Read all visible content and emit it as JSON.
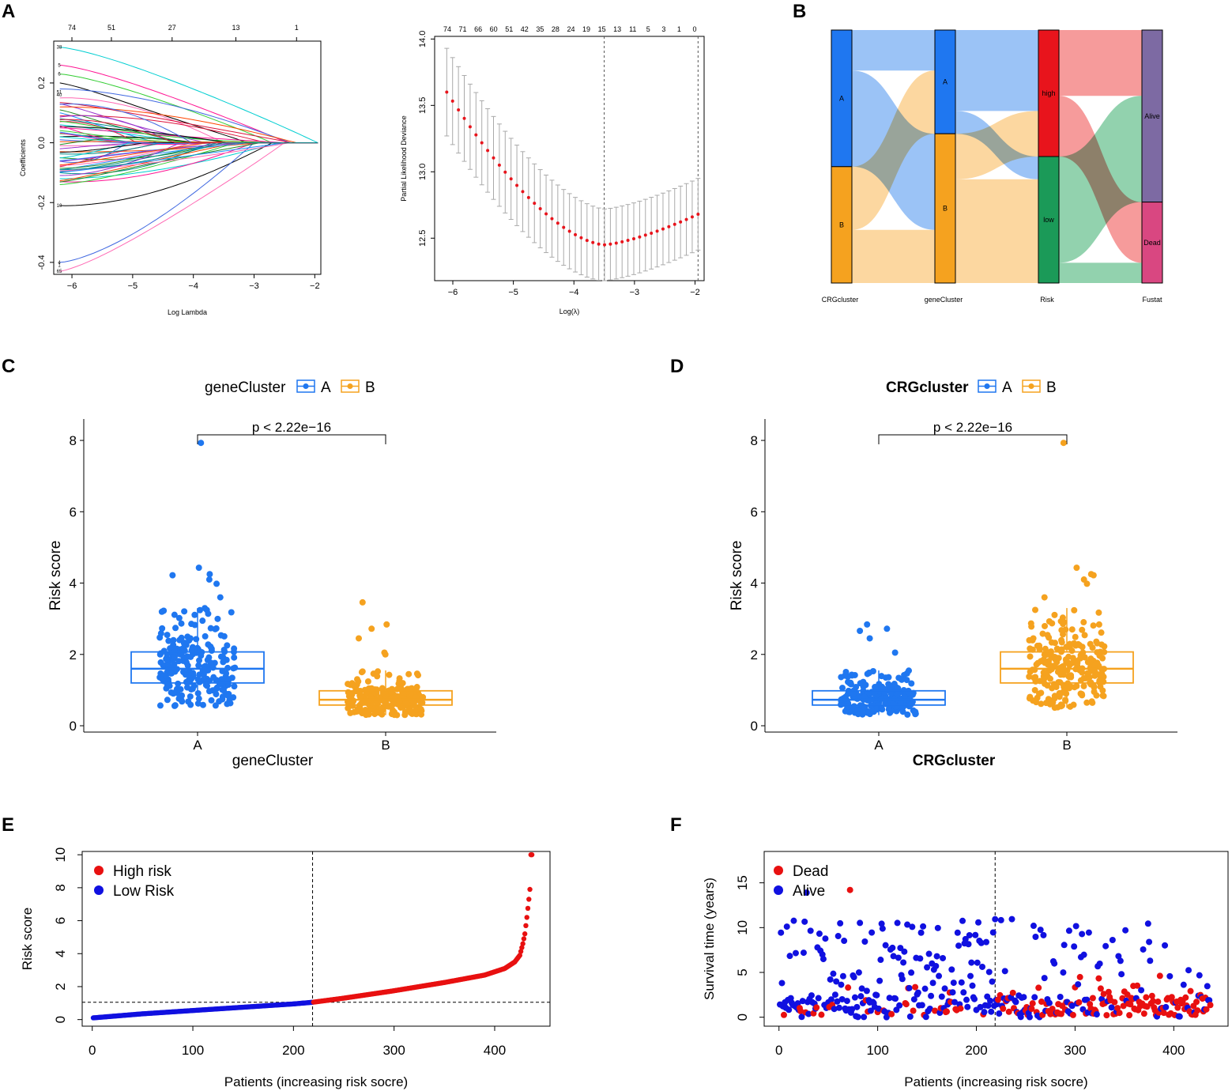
{
  "panels": {
    "A": "A",
    "B": "B",
    "C": "C",
    "D": "D",
    "E": "E",
    "F": "F"
  },
  "colors": {
    "blue": "#1f77f0",
    "orange": "#f5a21f",
    "red": "#e8141c",
    "green": "#1b9a58",
    "purple": "#7d6aa3",
    "pink": "#d94781",
    "scatterBlue": "#1010e0",
    "scatterRed": "#e81010"
  },
  "chart_data": [
    {
      "id": "A1",
      "type": "line",
      "title": "",
      "xlabel": "Log Lambda",
      "ylabel": "Coefficients",
      "xlim": [
        -6.3,
        -1.9
      ],
      "ylim": [
        -0.44,
        0.34
      ],
      "xticks": [
        -6,
        -5,
        -4,
        -3,
        -2
      ],
      "yticks": [
        -0.4,
        -0.2,
        0.0,
        0.2
      ],
      "top_axis_values": [
        74,
        51,
        27,
        13,
        1
      ],
      "top_axis_positions": [
        -6.3,
        -5.35,
        -4.35,
        -3.3,
        -2.3
      ],
      "description_series": "74 coefficient paths converging to 0 at log lambda approximately -1.95",
      "paths_start": [
        0.32,
        0.26,
        0.23,
        0.2,
        0.18,
        0.15,
        0.13,
        0.12,
        0.11,
        0.1,
        0.09,
        0.08,
        0.06,
        0.05,
        0.03,
        0.02,
        0.01,
        -0.01,
        -0.02,
        -0.03,
        -0.05,
        -0.06,
        -0.08,
        -0.1,
        -0.12,
        -0.13,
        -0.14,
        -0.21,
        -0.4,
        -0.43
      ],
      "paths_end_x": [
        -1.95,
        -2.45,
        -2.7,
        -3.1,
        -2.4,
        -3.5,
        -3.8,
        -2.3,
        -4.1,
        -4.6,
        -2.8,
        -3.4,
        -4.0,
        -2.5,
        -5.0,
        -3.9,
        -4.3,
        -3.6,
        -4.2,
        -2.9,
        -3.5,
        -3.2,
        -4.5,
        -3.7,
        -2.6,
        -3.0,
        -3.3,
        -2.7,
        -3.0,
        -2.5
      ],
      "left_labels": [
        "38",
        "5",
        "6",
        "51",
        "40",
        "10",
        "4",
        "1",
        "65"
      ],
      "colors": [
        "#00ced1",
        "#ff1493",
        "#32cd32",
        "#000000",
        "#4169e1",
        "#ff69b4",
        "#9932cc",
        "#ff4500",
        "#228b22",
        "#1e90ff",
        "#dc143c",
        "#008b8b"
      ]
    },
    {
      "id": "A2",
      "type": "scatter",
      "title": "",
      "xlabel": "Log(λ)",
      "ylabel": "Partial Likelihood Deviance",
      "xlim": [
        -6.3,
        -1.85
      ],
      "ylim": [
        12.18,
        14.02
      ],
      "xticks": [
        -6,
        -5,
        -4,
        -3,
        -2
      ],
      "yticks": [
        12.5,
        13.0,
        13.5,
        14.0
      ],
      "top_axis_values": [
        74,
        71,
        66,
        60,
        51,
        42,
        35,
        28,
        24,
        19,
        15,
        13,
        11,
        5,
        3,
        1,
        0
      ],
      "lambda_min": -3.5,
      "lambda_1se": -1.95,
      "curve_start": [
        -6.1,
        13.6
      ],
      "curve_min": [
        -3.5,
        12.45
      ],
      "curve_end": [
        -1.95,
        12.68
      ],
      "error_halfwidth_start": 0.33,
      "error_halfwidth_min": 0.27
    },
    {
      "id": "B",
      "type": "sankey",
      "axes": [
        "CRGcluster",
        "geneCluster",
        "Risk",
        "Fustat"
      ],
      "nodes": {
        "CRGcluster": [
          {
            "name": "A",
            "share": 0.54
          },
          {
            "name": "B",
            "share": 0.46
          }
        ],
        "geneCluster": [
          {
            "name": "A",
            "share": 0.41
          },
          {
            "name": "B",
            "share": 0.59
          }
        ],
        "Risk": [
          {
            "name": "high",
            "share": 0.5
          },
          {
            "name": "low",
            "share": 0.5
          }
        ],
        "Fustat": [
          {
            "name": "Alive",
            "share": 0.68
          },
          {
            "name": "Dead",
            "share": 0.32
          }
        ]
      },
      "flows": [
        {
          "from": "CRGcluster:A",
          "to": "geneCluster:A",
          "share": 0.16
        },
        {
          "from": "CRGcluster:A",
          "to": "geneCluster:B",
          "share": 0.38
        },
        {
          "from": "CRGcluster:B",
          "to": "geneCluster:A",
          "share": 0.25
        },
        {
          "from": "CRGcluster:B",
          "to": "geneCluster:B",
          "share": 0.21
        },
        {
          "from": "geneCluster:A",
          "to": "Risk:high",
          "share": 0.32
        },
        {
          "from": "geneCluster:A",
          "to": "Risk:low",
          "share": 0.09
        },
        {
          "from": "geneCluster:B",
          "to": "Risk:high",
          "share": 0.18
        },
        {
          "from": "geneCluster:B",
          "to": "Risk:low",
          "share": 0.41
        },
        {
          "from": "Risk:high",
          "to": "Fustat:Alive",
          "share": 0.26
        },
        {
          "from": "Risk:high",
          "to": "Fustat:Dead",
          "share": 0.24
        },
        {
          "from": "Risk:low",
          "to": "Fustat:Alive",
          "share": 0.42
        },
        {
          "from": "Risk:low",
          "to": "Fustat:Dead",
          "share": 0.08
        }
      ]
    },
    {
      "id": "C",
      "type": "box",
      "legend_title": "geneCluster",
      "legend_entries": [
        "A",
        "B"
      ],
      "xlabel": "geneCluster",
      "ylabel": "Risk score",
      "categories": [
        "A",
        "B"
      ],
      "ylim": [
        0,
        8.6
      ],
      "yticks": [
        0,
        2,
        4,
        6,
        8
      ],
      "pvalue_text": "p < 2.22e−16",
      "boxes": [
        {
          "group": "A",
          "q1": 1.2,
          "median": 1.6,
          "q3": 2.07,
          "whisker_low": 0.55,
          "whisker_high": 3.3,
          "n": 230,
          "outliers": [
            7.93,
            4.43,
            4.25,
            4.22,
            4.1,
            3.98,
            3.6
          ]
        },
        {
          "group": "B",
          "q1": 0.58,
          "median": 0.73,
          "q3": 0.98,
          "whisker_low": 0.3,
          "whisker_high": 1.55,
          "n": 230,
          "outliers": [
            3.46,
            2.84,
            2.72,
            2.45,
            2.05,
            2.0
          ]
        }
      ]
    },
    {
      "id": "D",
      "type": "box",
      "legend_title": "CRGcluster",
      "legend_entries": [
        "A",
        "B"
      ],
      "xlabel": "CRGcluster",
      "ylabel": "Risk score",
      "categories": [
        "A",
        "B"
      ],
      "ylim": [
        0,
        8.6
      ],
      "yticks": [
        0,
        2,
        4,
        6,
        8
      ],
      "pvalue_text": "p < 2.22e−16",
      "boxes": [
        {
          "group": "A",
          "q1": 0.58,
          "median": 0.73,
          "q3": 0.98,
          "whisker_low": 0.3,
          "whisker_high": 1.55,
          "n": 230,
          "outliers": [
            2.84,
            2.72,
            2.66,
            2.45,
            2.05
          ]
        },
        {
          "group": "B",
          "q1": 1.2,
          "median": 1.6,
          "q3": 2.07,
          "whisker_low": 0.5,
          "whisker_high": 3.3,
          "n": 230,
          "outliers": [
            7.93,
            4.43,
            4.25,
            4.22,
            4.1,
            3.98,
            3.6
          ]
        }
      ]
    },
    {
      "id": "E",
      "type": "scatter",
      "xlabel": "Patients (increasing risk socre)",
      "ylabel": "Risk score",
      "xlim": [
        -10,
        455
      ],
      "ylim": [
        -0.4,
        10.2
      ],
      "xticks": [
        0,
        100,
        200,
        300,
        400
      ],
      "yticks": [
        0,
        2,
        4,
        6,
        8,
        10
      ],
      "n_patients": 437,
      "cutoff_index": 219,
      "cutoff_value": 1.05,
      "legend": [
        "High risk",
        "Low Risk"
      ],
      "anchor_values": [
        [
          0,
          0.1
        ],
        [
          50,
          0.35
        ],
        [
          100,
          0.55
        ],
        [
          150,
          0.75
        ],
        [
          200,
          0.95
        ],
        [
          219,
          1.05
        ],
        [
          250,
          1.3
        ],
        [
          300,
          1.75
        ],
        [
          350,
          2.25
        ],
        [
          390,
          2.7
        ],
        [
          410,
          3.1
        ],
        [
          420,
          3.5
        ],
        [
          425,
          3.9
        ],
        [
          428,
          4.6
        ],
        [
          430,
          5.2
        ],
        [
          432,
          6.2
        ],
        [
          434,
          7.3
        ],
        [
          435,
          7.9
        ],
        [
          436,
          10.0
        ],
        [
          437,
          10.0
        ]
      ]
    },
    {
      "id": "F",
      "type": "scatter",
      "xlabel": "Patients (increasing risk socre)",
      "ylabel": "Survival time (years)",
      "xlim": [
        -15,
        455
      ],
      "ylim": [
        -1.0,
        18.5
      ],
      "xticks": [
        0,
        100,
        200,
        300,
        400
      ],
      "yticks": [
        0,
        5,
        10,
        15
      ],
      "n_patients": 437,
      "cutoff_index": 219,
      "legend": [
        "Dead",
        "Alive"
      ],
      "dead_rate_low": 0.12,
      "dead_rate_high": 0.45
    }
  ]
}
